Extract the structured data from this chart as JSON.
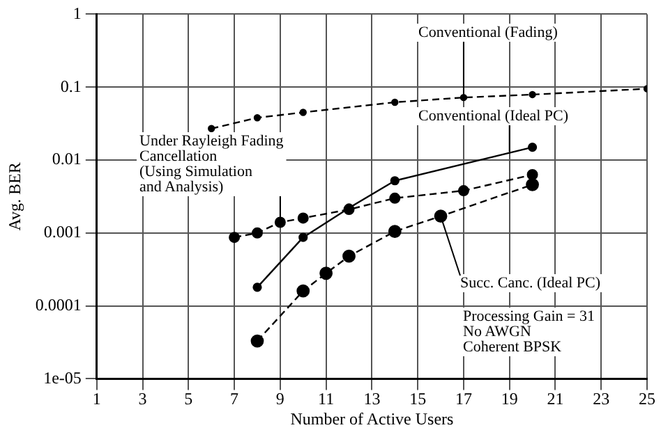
{
  "chart_data": {
    "type": "line",
    "xlabel": "Number of Active Users",
    "ylabel": "Avg. BER",
    "xlim": [
      1,
      25
    ],
    "xticks": [
      1,
      3,
      5,
      7,
      9,
      11,
      13,
      15,
      17,
      19,
      21,
      23,
      25
    ],
    "ylim": [
      1e-05,
      1
    ],
    "yticks": [
      1,
      0.1,
      0.01,
      0.001,
      0.0001,
      {
        "value": 1e-05,
        "label": "1e-05"
      }
    ],
    "log": "y",
    "grid": true,
    "legend": false,
    "marker": "circle",
    "series": [
      {
        "color": "#000000",
        "line_style": "dashed",
        "x": [
          6,
          8,
          10,
          14,
          17,
          20,
          25
        ],
        "values": [
          0.027,
          0.038,
          0.045,
          0.062,
          0.072,
          0.079,
          0.095
        ]
      },
      {
        "color": "#000000",
        "line_style": "solid",
        "x": [
          8,
          10,
          12,
          14,
          20
        ],
        "values": [
          0.00018,
          0.00087,
          0.0022,
          0.0052,
          0.015
        ]
      },
      {
        "color": "#000000",
        "line_style": "dashed",
        "x": [
          7,
          8,
          9,
          10,
          12,
          14,
          17,
          20
        ],
        "values": [
          0.00087,
          0.001,
          0.0014,
          0.0016,
          0.0021,
          0.003,
          0.0038,
          0.0063
        ]
      },
      {
        "color": "#000000",
        "line_style": "dashed",
        "x": [
          8,
          10,
          11,
          12,
          14,
          16,
          20
        ],
        "values": [
          3.3e-05,
          0.00016,
          0.00028,
          0.00048,
          0.00105,
          0.0017,
          0.0046
        ]
      }
    ],
    "annotations": [
      {
        "text": "Conventional (Fading)",
        "x": 17,
        "y": 0.072
      },
      {
        "text": "Conventional (Ideal PC)",
        "x": 19,
        "y": 0.013
      },
      {
        "text": "Under Rayleigh Fading\nCancellation\n(Using Simulation\nand Analysis)",
        "x": 9,
        "y": 0.0014
      },
      {
        "text": "Succ. Canc. (Ideal PC)",
        "x": 16,
        "y": 0.0017
      },
      "Processing Gain = 31\nNo AWGN\nCoherent BPSK"
    ]
  }
}
